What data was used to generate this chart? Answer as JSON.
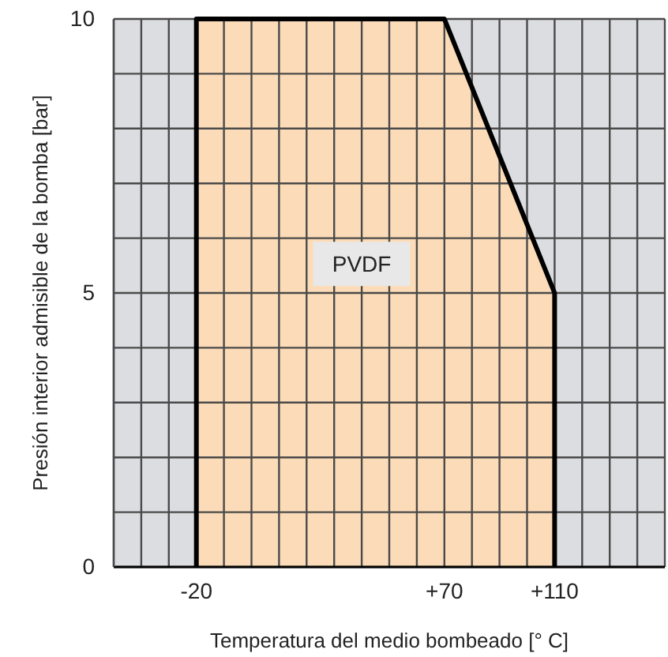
{
  "chart_data": {
    "type": "area",
    "xlabel": "Temperatura del medio bombeado [° C]",
    "ylabel": "Presión interior admisible de la bomba [bar]",
    "x": [
      -20,
      -20,
      70,
      110,
      110
    ],
    "series": [
      {
        "color": "#fcdcb8",
        "values": [
          0,
          10,
          10,
          5,
          0
        ]
      }
    ],
    "xlim": [
      -50,
      150
    ],
    "xticks": [
      {
        "value": -50,
        "label": null
      },
      {
        "value": -40,
        "label": null
      },
      {
        "value": -30,
        "label": null
      },
      {
        "value": -20,
        "label": "-20"
      },
      {
        "value": -10,
        "label": null
      },
      {
        "value": 0,
        "label": null
      },
      {
        "value": 10,
        "label": null
      },
      {
        "value": 20,
        "label": null
      },
      {
        "value": 30,
        "label": null
      },
      {
        "value": 40,
        "label": null
      },
      {
        "value": 50,
        "label": null
      },
      {
        "value": 60,
        "label": null
      },
      {
        "value": 70,
        "label": "+70"
      },
      {
        "value": 80,
        "label": null
      },
      {
        "value": 90,
        "label": null
      },
      {
        "value": 100,
        "label": null
      },
      {
        "value": 110,
        "label": "+110"
      },
      {
        "value": 120,
        "label": null
      },
      {
        "value": 130,
        "label": null
      },
      {
        "value": 140,
        "label": null
      },
      {
        "value": 150,
        "label": null
      }
    ],
    "ylim": [
      0,
      10
    ],
    "yticks": [
      0,
      {
        "value": 1,
        "label": null
      },
      {
        "value": 2,
        "label": null
      },
      {
        "value": 3,
        "label": null
      },
      {
        "value": 4,
        "label": null
      },
      5,
      {
        "value": 6,
        "label": null
      },
      {
        "value": 7,
        "label": null
      },
      {
        "value": 8,
        "label": null
      },
      {
        "value": 9,
        "label": null
      },
      10
    ],
    "grid": true,
    "annotations": [
      "PVDF"
    ]
  }
}
